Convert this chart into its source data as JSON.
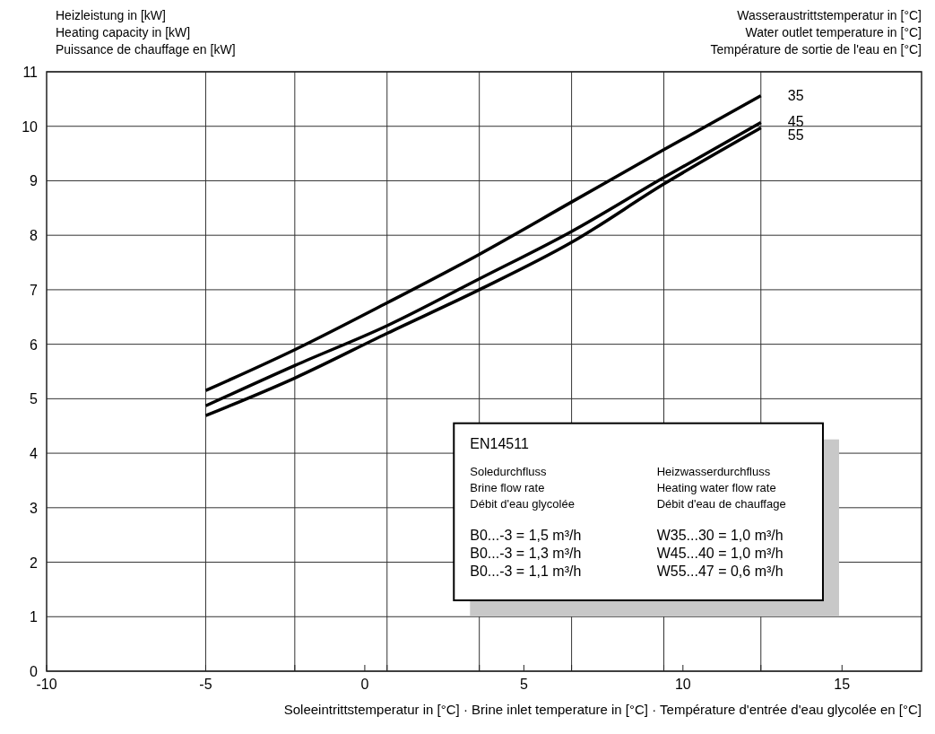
{
  "chart_data": {
    "type": "line",
    "ylabel": "Heizleistung in [kW]\nHeating capacity in [kW]\nPuissance de chauffage en [kW]",
    "legend_title": "Wasseraustrittstemperatur in [°C]\nWater outlet temperature in [°C]\nTempérature de sortie de l'eau en [°C]",
    "xlabel": "Soleeintrittstemperatur in [°C] · Brine inlet temperature in [°C] · Température d'entrée d'eau glycolée en [°C]",
    "x": [
      -5,
      -2.2,
      0.7,
      3.6,
      6.5,
      9.4,
      12.45
    ],
    "series": [
      {
        "name": "35",
        "color": "#000000",
        "values": [
          5.15,
          5.9,
          6.76,
          7.65,
          8.61,
          9.57,
          10.56
        ]
      },
      {
        "name": "45",
        "color": "#000000",
        "values": [
          4.87,
          5.61,
          6.34,
          7.2,
          8.07,
          9.06,
          10.07
        ]
      },
      {
        "name": "55",
        "color": "#000000",
        "values": [
          4.69,
          5.38,
          6.2,
          7.0,
          7.87,
          8.94,
          9.97
        ]
      }
    ],
    "xlim": [
      -10,
      17.5
    ],
    "xticks": [
      -10,
      {
        "value": -5,
        "label": "-5"
      },
      {
        "value": -2.2,
        "label": null
      },
      0,
      {
        "value": 0.7,
        "label": null
      },
      {
        "value": 3.6,
        "label": null
      },
      5,
      {
        "value": 6.5,
        "label": null
      },
      {
        "value": 9.4,
        "label": null
      },
      10,
      {
        "value": 12.45,
        "label": null
      },
      15
    ],
    "ylim": [
      0,
      11
    ],
    "yticks": [
      0,
      1,
      2,
      3,
      4,
      5,
      6,
      7,
      8,
      9,
      10,
      11
    ],
    "grid": true,
    "line_style": "solid",
    "marker": "none",
    "annotations": [
      "EN14511",
      "Soledurchfluss",
      "Brine flow rate",
      "Débit d'eau glycolée",
      "B0...-3 = 1,5   m³/h",
      "B0...-3 = 1,3   m³/h",
      "B0...-3 = 1,1   m³/h",
      "Heizwasserdurchfluss",
      "Heating water flow rate",
      "Débit d'eau de chauffage",
      "W35...30 = 1,0 m³/h",
      "W45...40 = 1,0 m³/h",
      "W55...47 = 0,6 m³/h"
    ]
  }
}
